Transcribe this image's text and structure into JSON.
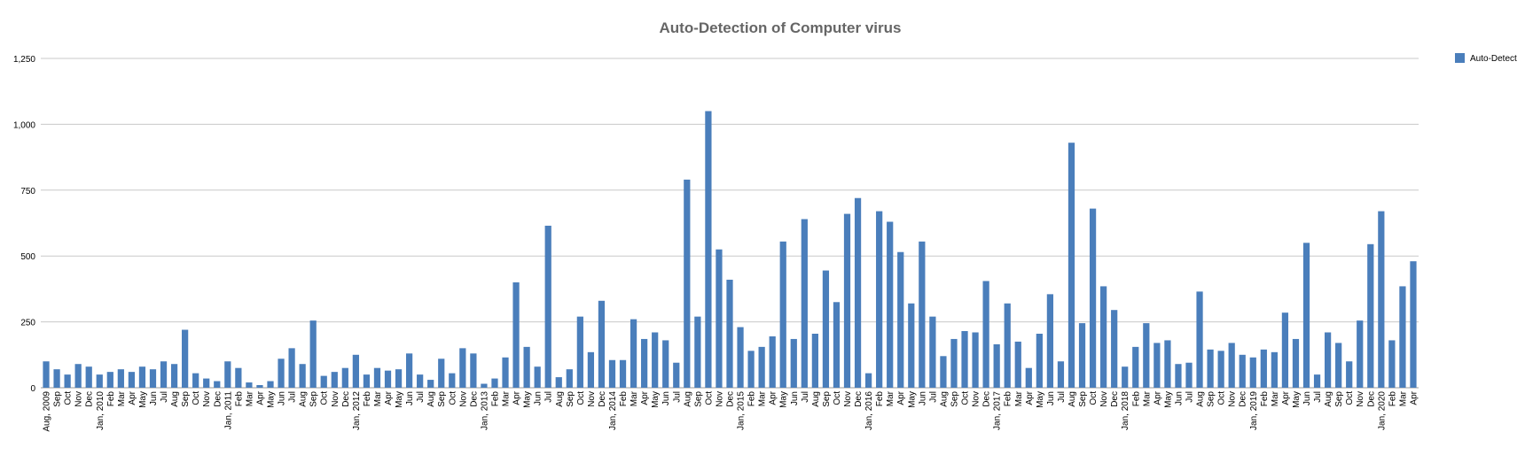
{
  "chart_data": {
    "type": "bar",
    "title": "Auto-Detection of Computer virus",
    "xlabel": "",
    "ylabel": "",
    "ylim": [
      0,
      1250
    ],
    "yticks": [
      "0",
      "250",
      "500",
      "750",
      "1,000",
      "1,250"
    ],
    "grid": true,
    "legend_position": "top-right",
    "bar_color": "#4a7ebb",
    "categories": [
      "Aug, 2009",
      "Sep",
      "Oct",
      "Nov",
      "Dec",
      "Jan, 2010",
      "Feb",
      "Mar",
      "Apr",
      "May",
      "Jun",
      "Jul",
      "Aug",
      "Sep",
      "Oct",
      "Nov",
      "Dec",
      "Jan, 2011",
      "Feb",
      "Mar",
      "Apr",
      "May",
      "Jun",
      "Jul",
      "Aug",
      "Sep",
      "Oct",
      "Nov",
      "Dec",
      "Jan, 2012",
      "Feb",
      "Mar",
      "Apr",
      "May",
      "Jun",
      "Jul",
      "Aug",
      "Sep",
      "Oct",
      "Nov",
      "Dec",
      "Jan, 2013",
      "Feb",
      "Mar",
      "Apr",
      "May",
      "Jun",
      "Jul",
      "Aug",
      "Sep",
      "Oct",
      "Nov",
      "Dec",
      "Jan, 2014",
      "Feb",
      "Mar",
      "Apr",
      "May",
      "Jun",
      "Jul",
      "Aug",
      "Sep",
      "Oct",
      "Nov",
      "Dec",
      "Jan, 2015",
      "Feb",
      "Mar",
      "Apr",
      "May",
      "Jun",
      "Jul",
      "Aug",
      "Sep",
      "Oct",
      "Nov",
      "Dec",
      "Jan, 2016",
      "Feb",
      "Mar",
      "Apr",
      "May",
      "Jun",
      "Jul",
      "Aug",
      "Sep",
      "Oct",
      "Nov",
      "Dec",
      "Jan, 2017",
      "Feb",
      "Mar",
      "Apr",
      "May",
      "Jun",
      "Jul",
      "Aug",
      "Sep",
      "Oct",
      "Nov",
      "Dec",
      "Jan, 2018",
      "Feb",
      "Mar",
      "Apr",
      "May",
      "Jun",
      "Jul",
      "Aug",
      "Sep",
      "Oct",
      "Nov",
      "Dec",
      "Jan, 2019",
      "Feb",
      "Mar",
      "Apr",
      "May",
      "Jun",
      "Jul",
      "Aug",
      "Sep",
      "Oct",
      "Nov",
      "Dec",
      "Jan, 2020",
      "Feb",
      "Mar",
      "Apr"
    ],
    "series": [
      {
        "name": "Auto-Detect",
        "values": [
          100,
          70,
          50,
          90,
          80,
          50,
          60,
          70,
          60,
          80,
          70,
          100,
          90,
          220,
          55,
          35,
          25,
          100,
          75,
          20,
          10,
          25,
          110,
          150,
          90,
          255,
          45,
          60,
          75,
          125,
          50,
          75,
          65,
          70,
          130,
          50,
          30,
          110,
          55,
          150,
          130,
          15,
          35,
          115,
          400,
          155,
          80,
          615,
          40,
          70,
          270,
          135,
          330,
          105,
          105,
          260,
          185,
          210,
          180,
          95,
          790,
          270,
          1050,
          525,
          410,
          230,
          140,
          155,
          195,
          555,
          185,
          640,
          205,
          445,
          325,
          660,
          720,
          55,
          670,
          630,
          515,
          320,
          555,
          270,
          120,
          185,
          215,
          210,
          405,
          165,
          320,
          175,
          75,
          205,
          355,
          100,
          930,
          245,
          680,
          385,
          295,
          80,
          155,
          245,
          170,
          180,
          90,
          95,
          365,
          145,
          140,
          170,
          125,
          115,
          145,
          135,
          285,
          185,
          550,
          50,
          210,
          170,
          100,
          255,
          545,
          670,
          180,
          385,
          480
        ]
      }
    ]
  }
}
